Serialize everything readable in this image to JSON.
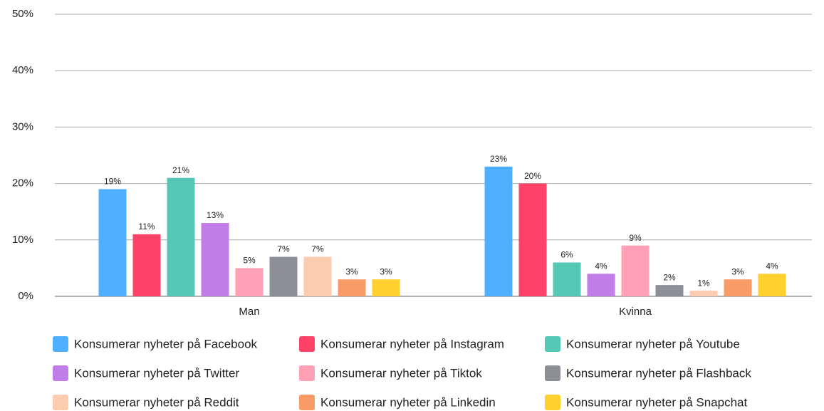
{
  "chart_data": {
    "type": "bar",
    "categories": [
      "Man",
      "Kvinna"
    ],
    "series": [
      {
        "name": "Konsumerar nyheter på Facebook",
        "color": "#4fb0ff",
        "values": [
          19,
          23
        ],
        "value_labels": [
          "19%",
          "23%"
        ]
      },
      {
        "name": "Konsumerar nyheter på Instagram",
        "color": "#ff4267",
        "values": [
          11,
          20
        ],
        "value_labels": [
          "11%",
          "20%"
        ]
      },
      {
        "name": "Konsumerar nyheter på Youtube",
        "color": "#55c8b5",
        "values": [
          21,
          6
        ],
        "value_labels": [
          "21%",
          "6%"
        ]
      },
      {
        "name": "Konsumerar nyheter på Twitter",
        "color": "#c27ee8",
        "values": [
          13,
          4
        ],
        "value_labels": [
          "13%",
          "4%"
        ]
      },
      {
        "name": "Konsumerar nyheter på Tiktok",
        "color": "#ffa0b5",
        "values": [
          5,
          9
        ],
        "value_labels": [
          "5%",
          "9%"
        ]
      },
      {
        "name": "Konsumerar nyheter på Flashback",
        "color": "#8c8f95",
        "values": [
          7,
          2
        ],
        "value_labels": [
          "7%",
          "2%"
        ]
      },
      {
        "name": "Konsumerar nyheter på Reddit",
        "color": "#fcccb0",
        "values": [
          7,
          1
        ],
        "value_labels": [
          "7%",
          "1%"
        ]
      },
      {
        "name": "Konsumerar nyheter på Linkedin",
        "color": "#f99b66",
        "values": [
          3,
          3
        ],
        "value_labels": [
          "3%",
          "3%"
        ]
      },
      {
        "name": "Konsumerar nyheter på Snapchat",
        "color": "#ffd02e",
        "values": [
          3,
          4
        ],
        "value_labels": [
          "3%",
          "4%"
        ]
      }
    ],
    "ylim": [
      0,
      50
    ],
    "yticks": [
      {
        "value": 0,
        "label": "0%"
      },
      {
        "value": 10,
        "label": "10%"
      },
      {
        "value": 20,
        "label": "20%"
      },
      {
        "value": 30,
        "label": "30%"
      },
      {
        "value": 40,
        "label": "40%"
      },
      {
        "value": 50,
        "label": "50%"
      }
    ],
    "grid": true,
    "legend": "bottom"
  }
}
